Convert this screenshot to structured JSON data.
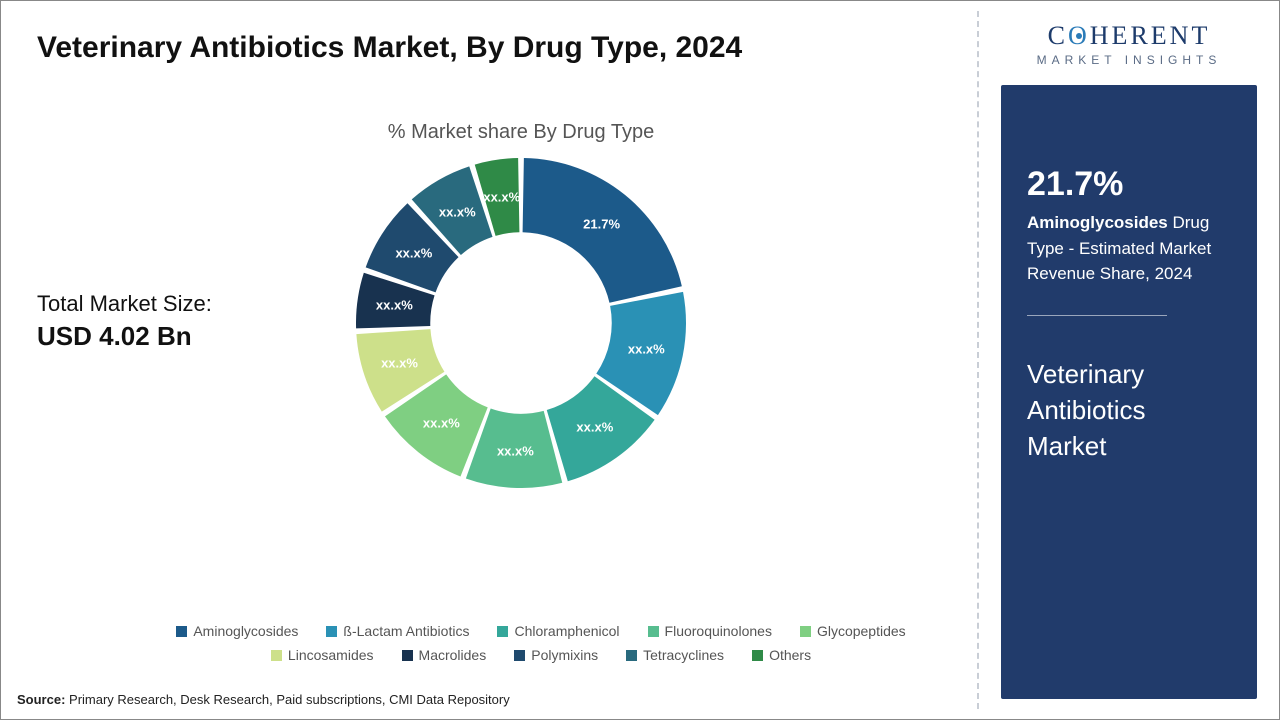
{
  "title": "Veterinary Antibiotics Market, By Drug Type, 2024",
  "market_size": {
    "label": "Total Market Size:",
    "value": "USD 4.02 Bn"
  },
  "source": {
    "prefix": "Source:",
    "text": " Primary Research, Desk Research, Paid subscriptions, CMI Data Repository"
  },
  "logo": {
    "line1_a": "C",
    "line1_o": "O",
    "line1_b": "HERENT",
    "line2": "MARKET INSIGHTS"
  },
  "side": {
    "pct": "21.7%",
    "desc_em": "Aminoglycosides",
    "desc_rest": " Drug Type - Estimated Market Revenue Share, 2024",
    "title": "Veterinary Antibiotics Market"
  },
  "chart": {
    "title": "% Market share By Drug Type",
    "type": "donut",
    "size": 330,
    "inner_ratio": 0.55,
    "gap_deg": 2,
    "background_color": "#ffffff",
    "start_angle_deg": -90,
    "label_fontsize": 13,
    "label_color": "#ffffff",
    "slices": [
      {
        "name": "Aminoglycosides",
        "value": 21.7,
        "color": "#1c5a8a",
        "label": "21.7%"
      },
      {
        "name": "ß-Lactam Antibiotics",
        "value": 13.0,
        "color": "#2a91b5",
        "label": "xx.x%"
      },
      {
        "name": "Chloramphenicol",
        "value": 11.0,
        "color": "#34a79a",
        "label": "xx.x%"
      },
      {
        "name": "Fluoroquinolones",
        "value": 10.0,
        "color": "#57bd8f",
        "label": "xx.x%"
      },
      {
        "name": "Glycopeptides",
        "value": 10.0,
        "color": "#7fcf82",
        "label": "xx.x%"
      },
      {
        "name": "Lincosamides",
        "value": 8.5,
        "color": "#cde08a",
        "label": "xx.x%"
      },
      {
        "name": "Macrolides",
        "value": 6.0,
        "color": "#18324f",
        "label": "xx.x%"
      },
      {
        "name": "Polymixins",
        "value": 8.0,
        "color": "#1f4a6e",
        "label": "xx.x%"
      },
      {
        "name": "Tetracyclines",
        "value": 7.0,
        "color": "#296a7e",
        "label": "xx.x%"
      },
      {
        "name": "Others",
        "value": 4.8,
        "color": "#2f8a47",
        "label": "xx.x%"
      }
    ]
  },
  "legend": [
    {
      "label": "Aminoglycosides",
      "color": "#1c5a8a"
    },
    {
      "label": "ß-Lactam Antibiotics",
      "color": "#2a91b5"
    },
    {
      "label": "Chloramphenicol",
      "color": "#34a79a"
    },
    {
      "label": "Fluoroquinolones",
      "color": "#57bd8f"
    },
    {
      "label": "Glycopeptides",
      "color": "#7fcf82"
    },
    {
      "label": "Lincosamides",
      "color": "#cde08a"
    },
    {
      "label": "Macrolides",
      "color": "#18324f"
    },
    {
      "label": "Polymixins",
      "color": "#1f4a6e"
    },
    {
      "label": "Tetracyclines",
      "color": "#296a7e"
    },
    {
      "label": "Others",
      "color": "#2f8a47"
    }
  ]
}
